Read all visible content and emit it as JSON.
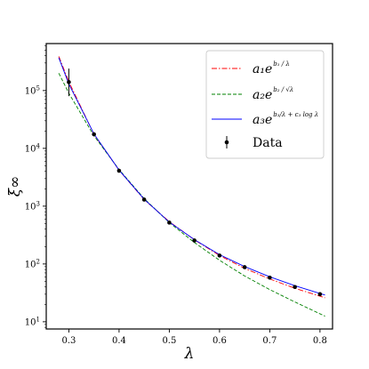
{
  "chart_data": {
    "type": "line",
    "title": "",
    "xlabel": "λ",
    "ylabel": "ξ∞",
    "y_scale": "log",
    "xlim": [
      0.255,
      0.825
    ],
    "ylim": [
      7.5,
      650000
    ],
    "x_ticks": [
      0.3,
      0.4,
      0.5,
      0.6,
      0.7,
      0.8
    ],
    "x_tick_labels": [
      "0.3",
      "0.4",
      "0.5",
      "0.6",
      "0.7",
      "0.8"
    ],
    "y_ticks": [
      10,
      100,
      1000,
      10000,
      100000
    ],
    "y_tick_labels": [
      {
        "base": "10",
        "exp": "1"
      },
      {
        "base": "10",
        "exp": "2"
      },
      {
        "base": "10",
        "exp": "3"
      },
      {
        "base": "10",
        "exp": "4"
      },
      {
        "base": "10",
        "exp": "5"
      }
    ],
    "grid": false,
    "legend_position": "top-right",
    "series": [
      {
        "kind": "line",
        "color": "#ff0000",
        "dash": "dashdot",
        "legend": {
          "main": "a₁e",
          "sup": "b₁ / λ"
        },
        "x": [
          0.28,
          0.3,
          0.35,
          0.4,
          0.45,
          0.5,
          0.55,
          0.6,
          0.65,
          0.7,
          0.75,
          0.81
        ],
        "y": [
          390000,
          142000,
          17500,
          4200,
          1300,
          540,
          262,
          140,
          84,
          55,
          38,
          26
        ]
      },
      {
        "kind": "line",
        "color": "#008000",
        "dash": "dashed",
        "legend": {
          "main": "a₂e",
          "sup": "b₂ / √λ"
        },
        "x": [
          0.28,
          0.3,
          0.35,
          0.4,
          0.45,
          0.5,
          0.55,
          0.6,
          0.65,
          0.7,
          0.75,
          0.81
        ],
        "y": [
          200000,
          90000,
          16500,
          4300,
          1350,
          520,
          235,
          116,
          62,
          36,
          22,
          12.5
        ]
      },
      {
        "kind": "line",
        "color": "#0000ff",
        "dash": "solid",
        "legend": {
          "main": "a₃e",
          "sup": "b₃/λ + c₃ log λ"
        },
        "x": [
          0.28,
          0.3,
          0.35,
          0.4,
          0.45,
          0.5,
          0.55,
          0.6,
          0.65,
          0.7,
          0.75,
          0.81
        ],
        "y": [
          370000,
          130000,
          17800,
          4200,
          1320,
          530,
          264,
          145,
          90,
          60,
          42,
          29
        ]
      },
      {
        "kind": "errorbar",
        "name": "Data",
        "color": "#000000",
        "legend": {
          "main": "Data",
          "sup": ""
        },
        "x": [
          0.3,
          0.35,
          0.4,
          0.45,
          0.5,
          0.55,
          0.6,
          0.65,
          0.7,
          0.75,
          0.8
        ],
        "y": [
          140000,
          17500,
          4100,
          1300,
          520,
          255,
          140,
          88,
          58,
          40,
          30
        ],
        "yerr_low": [
          80000,
          0,
          0,
          0,
          0,
          0,
          0,
          0,
          0,
          0,
          0
        ],
        "yerr_high": [
          240000,
          0,
          0,
          0,
          0,
          0,
          0,
          0,
          0,
          0,
          0
        ]
      }
    ]
  }
}
